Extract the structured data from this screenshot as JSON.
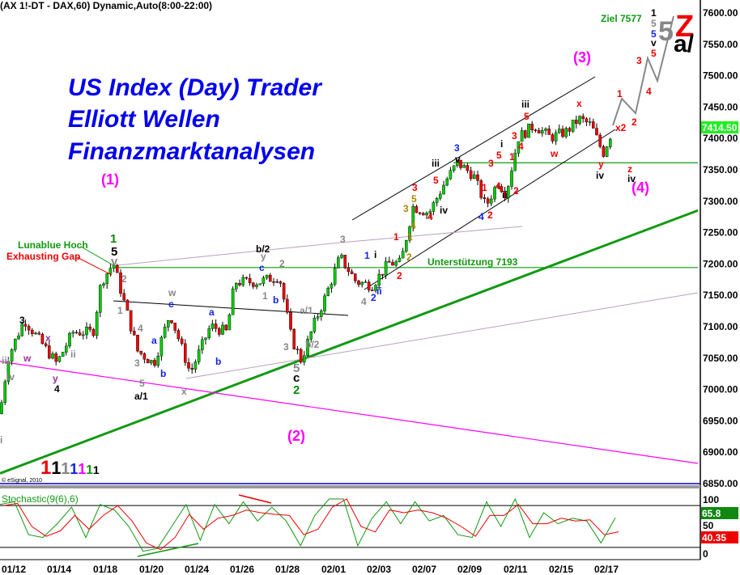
{
  "header": {
    "title": "(AX 1!-DT - DAX,60) Dynamic,Auto(8:00-22:00)"
  },
  "branding": {
    "line1": "US Index (Day) Trader",
    "line2": "Elliott Wellen",
    "line3": "Finanzmarktanalysen"
  },
  "colors": {
    "up": "#00cc00",
    "down": "#ee0000",
    "trend": "#119911",
    "magenta": "#ff00ff",
    "blue_title": "#0000ee",
    "wave_gray": "#888888"
  },
  "chart_data": [
    {
      "type": "candlestick",
      "title": "(AX 1!-DT - DAX,60) Dynamic,Auto(8:00-22:00)",
      "x_ticks": [
        "01/12",
        "01/14",
        "01/18",
        "01/20",
        "01/24",
        "01/26",
        "01/28",
        "02/01",
        "02/03",
        "02/07",
        "02/09",
        "02/11",
        "02/15",
        "02/17"
      ],
      "y_ticks": [
        "7600.00",
        "7550.00",
        "7500.00",
        "7450.00",
        "7400.00",
        "7350.00",
        "7300.00",
        "7250.00",
        "7200.00",
        "7150.00",
        "7100.00",
        "7050.00",
        "7000.00",
        "6950.00",
        "6900.00",
        "6850.00"
      ],
      "ylim": [
        6840,
        7620
      ],
      "last_price": "7414.50",
      "approx_swing_closes": [
        6960,
        7050,
        7110,
        7040,
        7090,
        7090,
        7170,
        7200,
        7130,
        7060,
        7040,
        7120,
        7025,
        7100,
        7090,
        7170,
        7170,
        7180,
        7080,
        7045,
        7110,
        7140,
        7210,
        7170,
        7165,
        7200,
        7200,
        7290,
        7280,
        7330,
        7360,
        7340,
        7290,
        7330,
        7310,
        7400,
        7420,
        7400,
        7410,
        7430,
        7420,
        7375,
        7414
      ],
      "horizontal_levels": [
        {
          "label": "Unterstützung 7193",
          "value": 7193
        },
        {
          "label": "",
          "value": 7360
        }
      ],
      "annotations": {
        "target": "Ziel 7577",
        "copyright": "© eSignal, 2010",
        "lunablue": "Lunablue Hoch",
        "gap": "Exhausting Gap",
        "support": "Unterstützung 7193",
        "big5": "5",
        "bigZ": "Z",
        "bigA": "a/",
        "degree_legend": [
          "1",
          "1",
          "1",
          "1",
          "1",
          "1",
          "1"
        ],
        "waves": [
          {
            "t": "(1)",
            "c": "#ff00ff"
          },
          {
            "t": "(2)",
            "c": "#ff00ff"
          },
          {
            "t": "(3)",
            "c": "#ff00ff"
          },
          {
            "t": "(4)",
            "c": "#ff00ff"
          },
          {
            "t": "1",
            "c": "#118811"
          },
          {
            "t": "5",
            "c": "#000"
          },
          {
            "t": "v",
            "c": "#888"
          },
          {
            "t": "2",
            "c": "#118811"
          },
          {
            "t": "c",
            "c": "#000"
          },
          {
            "t": "5",
            "c": "#888"
          },
          {
            "t": "b/2",
            "c": "#000"
          },
          {
            "t": "a/1",
            "c": "#000"
          },
          {
            "t": "3",
            "c": "#000"
          },
          {
            "t": "4",
            "c": "#000"
          },
          {
            "t": "iii",
            "c": "#888"
          },
          {
            "t": "iv",
            "c": "#888"
          },
          {
            "t": "i",
            "c": "#888"
          },
          {
            "t": "ii",
            "c": "#888"
          },
          {
            "t": "w",
            "c": "#993399"
          },
          {
            "t": "x",
            "c": "#993399"
          },
          {
            "t": "y",
            "c": "#993399"
          },
          {
            "t": "2",
            "c": "#888"
          },
          {
            "t": "1",
            "c": "#888"
          },
          {
            "t": "3",
            "c": "#888"
          },
          {
            "t": "4",
            "c": "#888"
          },
          {
            "t": "5",
            "c": "#888"
          },
          {
            "t": "a",
            "c": "#1122ee"
          },
          {
            "t": "b",
            "c": "#1122ee"
          },
          {
            "t": "c",
            "c": "#1122ee"
          },
          {
            "t": "w",
            "c": "#888"
          },
          {
            "t": "x",
            "c": "#888"
          },
          {
            "t": "a",
            "c": "#1122ee"
          },
          {
            "t": "b",
            "c": "#1122ee"
          },
          {
            "t": "y",
            "c": "#888"
          },
          {
            "t": "c",
            "c": "#1122ee"
          },
          {
            "t": "2",
            "c": "#888"
          },
          {
            "t": "1",
            "c": "#888"
          },
          {
            "t": "b",
            "c": "#1122ee"
          },
          {
            "t": "3",
            "c": "#888"
          },
          {
            "t": "b/2",
            "c": "#888"
          },
          {
            "t": "a/1",
            "c": "#888"
          },
          {
            "t": "3",
            "c": "#888"
          },
          {
            "t": "4",
            "c": "#888"
          },
          {
            "t": "1",
            "c": "#1122ee"
          },
          {
            "t": "2",
            "c": "#1122ee"
          },
          {
            "t": "i",
            "c": "#000"
          },
          {
            "t": "ii",
            "c": "#1122ee"
          },
          {
            "t": "1",
            "c": "#ee0000"
          },
          {
            "t": "2",
            "c": "#ee0000"
          },
          {
            "t": "1",
            "c": "#aa8800"
          },
          {
            "t": "2",
            "c": "#aa8800"
          },
          {
            "t": "3",
            "c": "#aa8800"
          },
          {
            "t": "4",
            "c": "#aa8800"
          },
          {
            "t": "5",
            "c": "#aa8800"
          },
          {
            "t": "3",
            "c": "#ee0000"
          },
          {
            "t": "4",
            "c": "#ee0000"
          },
          {
            "t": "5",
            "c": "#ee0000"
          },
          {
            "t": "iii",
            "c": "#000"
          },
          {
            "t": "iv",
            "c": "#000"
          },
          {
            "t": "3",
            "c": "#1122ee"
          },
          {
            "t": "v",
            "c": "#000"
          },
          {
            "t": "4",
            "c": "#1122ee"
          },
          {
            "t": "1",
            "c": "#ee0000"
          },
          {
            "t": "2",
            "c": "#ee0000"
          },
          {
            "t": "3",
            "c": "#ee0000"
          },
          {
            "t": "4",
            "c": "#ee0000"
          },
          {
            "t": "5",
            "c": "#ee0000"
          },
          {
            "t": "i",
            "c": "#000"
          },
          {
            "t": "ii",
            "c": "#000"
          },
          {
            "t": "1",
            "c": "#ee0000"
          },
          {
            "t": "2",
            "c": "#ee0000"
          },
          {
            "t": "3",
            "c": "#ee0000"
          },
          {
            "t": "4",
            "c": "#ee0000"
          },
          {
            "t": "5",
            "c": "#ee0000"
          },
          {
            "t": "iii",
            "c": "#000"
          },
          {
            "t": "w",
            "c": "#ee0000"
          },
          {
            "t": "x",
            "c": "#ee0000"
          },
          {
            "t": "y",
            "c": "#ee0000"
          },
          {
            "t": "iv",
            "c": "#000"
          },
          {
            "t": "x2",
            "c": "#ee0000"
          },
          {
            "t": "z",
            "c": "#ee0000"
          },
          {
            "t": "iv",
            "c": "#000"
          },
          {
            "t": "1",
            "c": "#ee0000"
          },
          {
            "t": "2",
            "c": "#ee0000"
          },
          {
            "t": "3",
            "c": "#ee0000"
          },
          {
            "t": "4",
            "c": "#ee0000"
          },
          {
            "t": "5",
            "c": "#ee0000"
          },
          {
            "t": "v",
            "c": "#000"
          },
          {
            "t": "5",
            "c": "#1122ee"
          },
          {
            "t": "5",
            "c": "#888"
          },
          {
            "t": "1",
            "c": "#000"
          }
        ]
      }
    },
    {
      "type": "line",
      "title": "Stochastic(9(6),6)",
      "ylim": [
        0,
        100
      ],
      "y_ticks": [
        "100",
        "50",
        "0"
      ],
      "reference_levels": [
        80,
        20
      ],
      "series": [
        {
          "name": "%K",
          "color": "#119911",
          "values": [
            90,
            95,
            35,
            30,
            55,
            85,
            30,
            90,
            80,
            50,
            5,
            10,
            50,
            90,
            25,
            90,
            55,
            95,
            60,
            85,
            60,
            15,
            70,
            100,
            100,
            15,
            65,
            95,
            55,
            95,
            60,
            70,
            35,
            30,
            95,
            50,
            100,
            30,
            75,
            55,
            65,
            60,
            20,
            65.8
          ]
        },
        {
          "name": "%D",
          "color": "#ee0000",
          "values": [
            88,
            92,
            50,
            32,
            42,
            70,
            45,
            70,
            88,
            60,
            20,
            8,
            30,
            72,
            45,
            65,
            70,
            80,
            75,
            72,
            70,
            35,
            45,
            85,
            100,
            50,
            40,
            80,
            75,
            80,
            75,
            65,
            50,
            32,
            70,
            70,
            90,
            55,
            55,
            65,
            60,
            62,
            35,
            40.35
          ]
        }
      ],
      "last_k": "65.8",
      "last_d": "40.35"
    }
  ]
}
